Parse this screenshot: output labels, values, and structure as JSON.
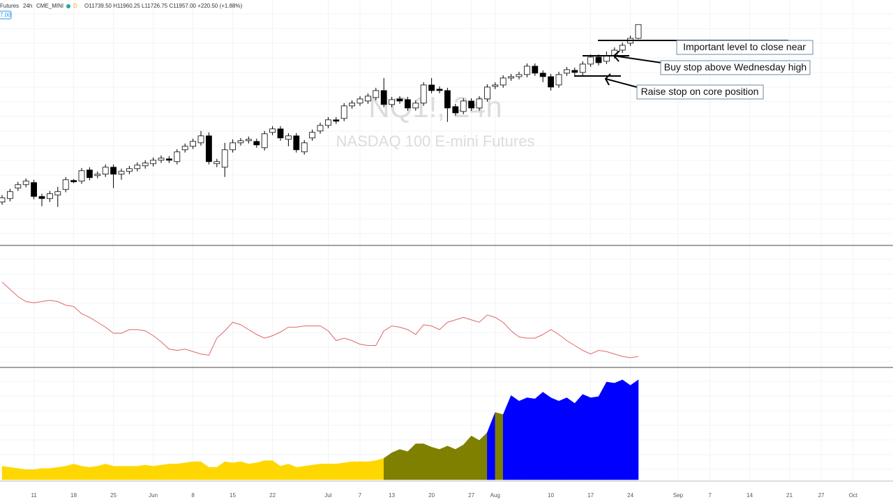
{
  "header": {
    "symbol": "Futures",
    "interval": "24h",
    "exchange": "CME_MINI",
    "status": "D",
    "ohlc": "O11739.50 H11960.25 L11726.75 C11957.00 +220.50 (+1.88%)",
    "price_tag": "7.00"
  },
  "chart_data": [
    {
      "type": "candlestick",
      "title": "NQ1!, 24h",
      "subtitle": "NASDAQ 100 E-mini Futures",
      "up_color": "#ffffff",
      "down_color": "#000000",
      "ylim": [
        8470,
        12345
      ],
      "annotations": [
        "Important level to close near",
        "Buy stop above Wednesday high",
        "Raise stop on core position"
      ],
      "categories": [
        null,
        null,
        null,
        null,
        "11",
        null,
        null,
        null,
        null,
        "18",
        null,
        null,
        null,
        null,
        "25",
        null,
        null,
        null,
        null,
        "Jun",
        null,
        null,
        null,
        null,
        "8",
        null,
        null,
        null,
        null,
        "15",
        null,
        null,
        null,
        null,
        "22",
        null,
        null,
        null,
        null,
        null,
        null,
        "Jul",
        null,
        null,
        null,
        "7",
        null,
        null,
        null,
        "13",
        null,
        null,
        null,
        null,
        "20",
        null,
        null,
        null,
        null,
        "27",
        null,
        null,
        "Aug",
        null,
        null,
        null,
        null,
        null,
        null,
        "10",
        null,
        null,
        null,
        null,
        "17",
        null,
        null,
        null,
        null,
        "24",
        null,
        null,
        null,
        null,
        null,
        "Sep",
        null,
        null,
        null,
        "7",
        null,
        null,
        null,
        null,
        "14",
        null,
        null,
        null,
        null,
        "21",
        null,
        null,
        null,
        "27",
        null,
        null,
        null,
        "Oct"
      ],
      "open": [
        9155,
        9210,
        9375,
        9430,
        9463,
        9243,
        9210,
        9265,
        9353,
        9496,
        9485,
        9661,
        9573,
        9595,
        9705,
        9595,
        9639,
        9683,
        9727,
        9760,
        9815,
        9837,
        9793,
        9980,
        10035,
        10090,
        10200,
        9760,
        9705,
        9980,
        10090,
        10123,
        10112,
        10013,
        10255,
        10310,
        10145,
        10200,
        9947,
        10167,
        10277,
        10365,
        10453,
        10475,
        10673,
        10717,
        10750,
        10805,
        10915,
        10695,
        10783,
        10772,
        10640,
        10717,
        11003,
        10937,
        10915,
        10662,
        10585,
        10750,
        10640,
        10783,
        10981,
        11003,
        11113,
        11135,
        11168,
        11300,
        11190,
        11135,
        11003,
        11190,
        11234,
        11201,
        11333,
        11443,
        11377,
        11465,
        11553,
        11663,
        11739.5,
        null,
        null,
        null,
        null,
        null,
        null,
        null,
        null,
        null,
        null,
        null,
        null,
        null,
        null,
        null,
        null,
        null,
        null,
        null,
        null,
        null,
        null,
        null,
        null,
        null,
        null,
        null
      ],
      "high": [
        9265,
        9364,
        9474,
        9529,
        9507,
        9287,
        9331,
        9397,
        9551,
        9518,
        9694,
        9705,
        9639,
        9749,
        9749,
        9683,
        9727,
        9782,
        9815,
        9859,
        9892,
        9881,
        9991,
        10079,
        10156,
        10277,
        10255,
        9837,
        10090,
        10145,
        10167,
        10189,
        10156,
        10277,
        10354,
        10354,
        10244,
        10244,
        10134,
        10299,
        10409,
        10497,
        10497,
        10717,
        10761,
        10827,
        10871,
        10959,
        11113,
        10816,
        10827,
        10816,
        10761,
        11047,
        11113,
        10981,
        10959,
        10706,
        10794,
        10794,
        10827,
        11014,
        11047,
        11157,
        11179,
        11212,
        11344,
        11344,
        11234,
        11179,
        11212,
        11289,
        11278,
        11377,
        11487,
        11487,
        11531,
        11597,
        11674,
        11784,
        11960.25,
        null,
        null,
        null,
        null,
        null,
        null,
        null,
        null,
        null,
        null,
        null,
        null,
        null,
        null,
        null,
        null,
        null,
        null,
        null,
        null,
        null,
        null,
        null,
        null,
        null,
        null,
        null
      ],
      "low": [
        9111,
        9166,
        9331,
        9386,
        9199,
        9089,
        9155,
        9078,
        9309,
        9452,
        9441,
        9496,
        9529,
        9551,
        9375,
        9507,
        9595,
        9639,
        9683,
        9716,
        9771,
        9771,
        9749,
        9936,
        9991,
        10046,
        9749,
        9705,
        9551,
        9936,
        10046,
        10079,
        10013,
        9969,
        10211,
        10123,
        10035,
        9936,
        9903,
        10123,
        10233,
        10321,
        10387,
        10431,
        10629,
        10673,
        10706,
        10761,
        10651,
        10651,
        10706,
        10596,
        10596,
        10673,
        10871,
        10871,
        10420,
        10519,
        10541,
        10596,
        10596,
        10739,
        10937,
        10959,
        11069,
        11091,
        11124,
        11146,
        11047,
        10915,
        10959,
        11146,
        11157,
        11157,
        11289,
        11311,
        11333,
        11421,
        11509,
        11619,
        11726.75,
        null,
        null,
        null,
        null,
        null,
        null,
        null,
        null,
        null,
        null,
        null,
        null,
        null,
        null,
        null,
        null,
        null,
        null,
        null,
        null,
        null,
        null,
        null,
        null,
        null,
        null,
        null
      ],
      "close": [
        9221,
        9320,
        9430,
        9485,
        9243,
        9210,
        9287,
        9320,
        9507,
        9474,
        9650,
        9540,
        9595,
        9705,
        9595,
        9639,
        9683,
        9738,
        9771,
        9815,
        9848,
        9815,
        9947,
        10035,
        10112,
        10200,
        9793,
        9793,
        9980,
        10090,
        10123,
        10145,
        10057,
        10233,
        10310,
        10167,
        10200,
        9980,
        10090,
        10255,
        10365,
        10453,
        10431,
        10673,
        10717,
        10783,
        10827,
        10915,
        10695,
        10772,
        10750,
        10640,
        10717,
        11003,
        10915,
        10915,
        10640,
        10563,
        10750,
        10640,
        10783,
        10970,
        11003,
        11113,
        11135,
        11168,
        11300,
        11190,
        11135,
        10970,
        11168,
        11245,
        11201,
        11333,
        11443,
        11355,
        11465,
        11553,
        11630,
        11740,
        11957,
        null,
        null,
        null,
        null,
        null,
        null,
        null,
        null,
        null,
        null,
        null,
        null,
        null,
        null,
        null,
        null,
        null,
        null,
        null,
        null,
        null,
        null,
        null,
        null,
        null,
        null,
        null
      ]
    },
    {
      "type": "line",
      "color": "#e06666",
      "ylim": [
        0,
        100
      ],
      "values": [
        70,
        64,
        58,
        54,
        53,
        54,
        55,
        54,
        51,
        50,
        44,
        41,
        37,
        33,
        28,
        28,
        31,
        31,
        30,
        26,
        21,
        15,
        14,
        15,
        13,
        11,
        10,
        24,
        30,
        37,
        35,
        31,
        27,
        24,
        26,
        29,
        33,
        33,
        34,
        34,
        34,
        30,
        22,
        24,
        22,
        19,
        18,
        18,
        30,
        34,
        33,
        31,
        27,
        35,
        34,
        31,
        37,
        39,
        41,
        39,
        37,
        43,
        41,
        37,
        30,
        25,
        24,
        24,
        27,
        31,
        27,
        22,
        18,
        14,
        11,
        14,
        13,
        11,
        9,
        8,
        9,
        null,
        null,
        null,
        null,
        null,
        null,
        null,
        null,
        null,
        null,
        null,
        null,
        null,
        null,
        null,
        null,
        null,
        null,
        null,
        null,
        null,
        null,
        null,
        null,
        null,
        null,
        null
      ]
    },
    {
      "type": "area",
      "ylim": [
        0,
        100
      ],
      "values": [
        12,
        11,
        10,
        9,
        9,
        10,
        10,
        11,
        12,
        14,
        12,
        11,
        12,
        14,
        12,
        12,
        12,
        12,
        13,
        12,
        13,
        14,
        14,
        15,
        16,
        16,
        11,
        11,
        16,
        15,
        16,
        14,
        15,
        17,
        17,
        12,
        14,
        11,
        12,
        13,
        14,
        14,
        14,
        15,
        16,
        16,
        16,
        17,
        19,
        24,
        27,
        25,
        32,
        32,
        29,
        27,
        30,
        27,
        31,
        39,
        35,
        42,
        60,
        58,
        75,
        70,
        73,
        72,
        78,
        73,
        70,
        73,
        68,
        76,
        73,
        74,
        87,
        86,
        89,
        84,
        89,
        null,
        null,
        null,
        null,
        null,
        null,
        null,
        null,
        null,
        null,
        null,
        null,
        null,
        null,
        null,
        null,
        null,
        null,
        null,
        null,
        null,
        null,
        null,
        null,
        null,
        null,
        null
      ],
      "colors": [
        "#ffd700",
        "#ffd700",
        "#ffd700",
        "#ffd700",
        "#ffd700",
        "#ffd700",
        "#ffd700",
        "#ffd700",
        "#ffd700",
        "#ffd700",
        "#ffd700",
        "#ffd700",
        "#ffd700",
        "#ffd700",
        "#ffd700",
        "#ffd700",
        "#ffd700",
        "#ffd700",
        "#ffd700",
        "#ffd700",
        "#ffd700",
        "#ffd700",
        "#ffd700",
        "#ffd700",
        "#ffd700",
        "#ffd700",
        "#ffd700",
        "#ffd700",
        "#ffd700",
        "#ffd700",
        "#ffd700",
        "#ffd700",
        "#ffd700",
        "#ffd700",
        "#ffd700",
        "#ffd700",
        "#ffd700",
        "#ffd700",
        "#ffd700",
        "#ffd700",
        "#ffd700",
        "#ffd700",
        "#ffd700",
        "#ffd700",
        "#ffd700",
        "#ffd700",
        "#ffd700",
        "#ffd700",
        "#ffd700",
        "#808000",
        "#808000",
        "#808000",
        "#808000",
        "#808000",
        "#808000",
        "#808000",
        "#808000",
        "#808000",
        "#808000",
        "#808000",
        "#808000",
        "#808000",
        "#0000ff",
        "#808000",
        "#0000ff",
        "#0000ff",
        "#0000ff",
        "#0000ff",
        "#0000ff",
        "#0000ff",
        "#0000ff",
        "#0000ff",
        "#0000ff",
        "#0000ff",
        "#0000ff",
        "#0000ff",
        "#0000ff",
        "#0000ff",
        "#0000ff",
        "#0000ff",
        "#0000ff",
        null,
        null,
        null,
        null,
        null,
        null,
        null,
        null,
        null,
        null,
        null,
        null,
        null,
        null,
        null,
        null,
        null,
        null,
        null,
        null,
        null,
        null,
        null,
        null,
        null,
        null,
        null
      ]
    }
  ]
}
